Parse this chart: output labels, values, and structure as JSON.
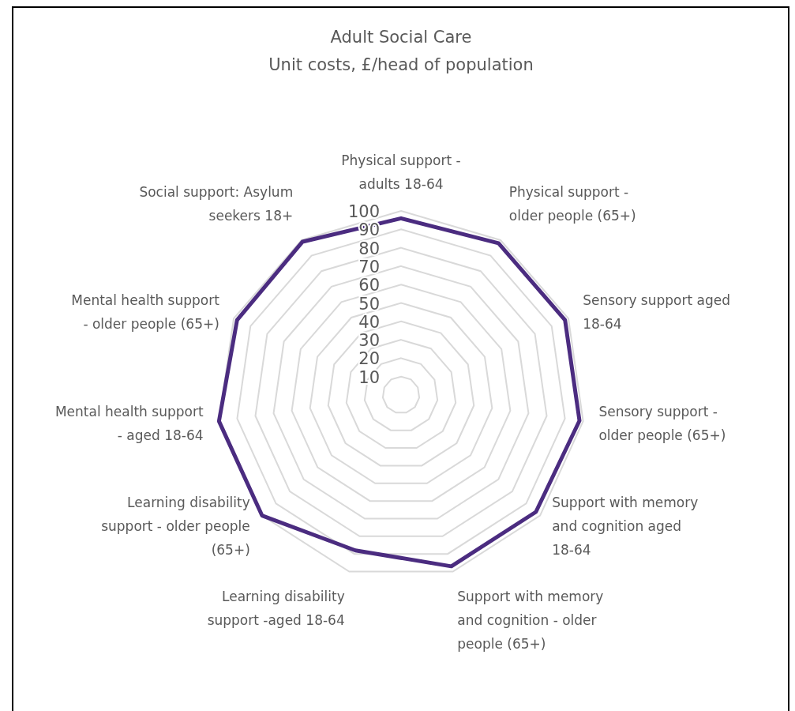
{
  "chart_data": {
    "type": "radar",
    "title": "Adult Social Care",
    "subtitle": "Unit costs, £/head of population",
    "categories": [
      "Physical support - adults 18-64",
      "Physical support - older people (65+)",
      "Sensory support aged 18-64",
      "Sensory support - older people (65+)",
      "Support with memory and cognition aged 18-64",
      "Support with memory and cognition - older people (65+)",
      "Learning disability support -aged 18-64",
      "Learning disability support - older people (65+)",
      "Mental health support - aged 18-64",
      "Mental health support - older people (65+)",
      "Social support: Asylum seekers 18+"
    ],
    "series": [
      {
        "color": "#4b2c80",
        "values": [
          96,
          98,
          98,
          98,
          97,
          97,
          88,
          100,
          100,
          98,
          99
        ]
      }
    ],
    "ylim": [
      0,
      100
    ],
    "yticks": [
      10,
      20,
      30,
      40,
      50,
      60,
      70,
      80,
      90,
      100
    ],
    "grid": true,
    "marker": "none",
    "line_style": "solid"
  }
}
